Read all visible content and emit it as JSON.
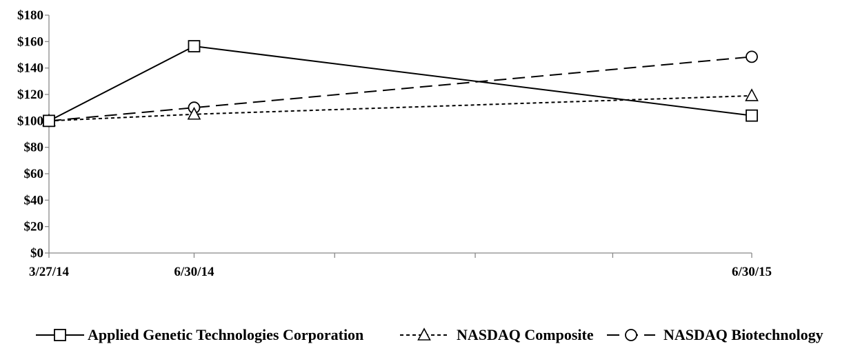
{
  "chart_data": {
    "type": "line",
    "title": "",
    "xlabel": "",
    "ylabel": "",
    "x": [
      "3/27/14",
      "6/30/14",
      "6/30/15"
    ],
    "x_dates": [
      "2014-03-27",
      "2014-06-30",
      "2015-06-30"
    ],
    "ylim": [
      0,
      180
    ],
    "y_ticks": [
      0,
      20,
      40,
      60,
      80,
      100,
      120,
      140,
      160,
      180
    ],
    "y_tick_labels": [
      "$0",
      "$20",
      "$40",
      "$60",
      "$80",
      "$100",
      "$120",
      "$140",
      "$160",
      "$180"
    ],
    "x_tick_labels": [
      "3/27/14",
      "6/30/14",
      "6/30/15"
    ],
    "grid": false,
    "legend_position": "bottom",
    "series": [
      {
        "name": "Applied Genetic Technologies Corporation",
        "marker": "square",
        "line_style": "solid",
        "values": [
          100,
          156.5,
          104
        ]
      },
      {
        "name": "NASDAQ Composite",
        "marker": "triangle",
        "line_style": "dotted",
        "values": [
          100,
          105,
          119
        ]
      },
      {
        "name": "NASDAQ Biotechnology",
        "marker": "circle",
        "line_style": "dashed",
        "values": [
          100,
          110,
          148.5
        ]
      }
    ]
  }
}
